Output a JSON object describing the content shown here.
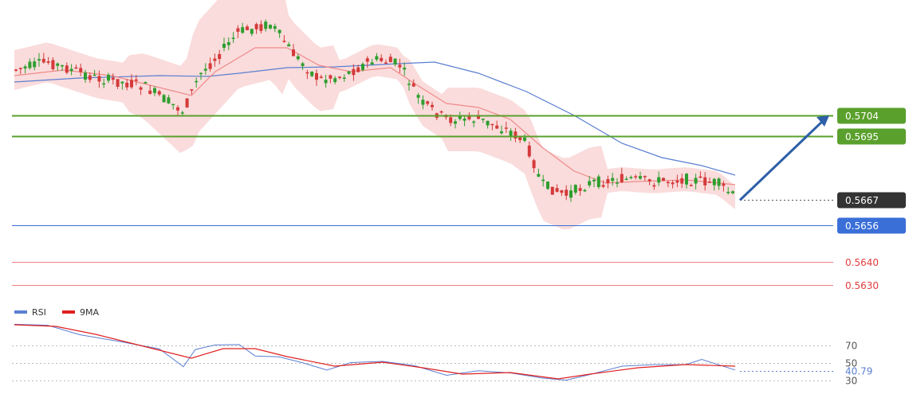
{
  "chart_data": {
    "type": "candlestick",
    "main": {
      "price_ylim": [
        0.5623,
        0.574
      ],
      "levels": [
        {
          "value": 0.5704,
          "label": "0.5704",
          "kind": "resistance",
          "color": "#5aa02c"
        },
        {
          "value": 0.5695,
          "label": "0.5695",
          "kind": "resistance",
          "color": "#5aa02c"
        },
        {
          "value": 0.5667,
          "label": "0.5667",
          "kind": "current",
          "color": "#333333"
        },
        {
          "value": 0.5656,
          "label": "0.5656",
          "kind": "support",
          "color": "#3a6fd8"
        },
        {
          "value": 0.564,
          "label": "0.5640",
          "kind": "support",
          "color": "#f08080"
        },
        {
          "value": 0.563,
          "label": "0.5630",
          "kind": "support",
          "color": "#f08080"
        }
      ],
      "arrow": {
        "from": 0.5667,
        "to": 0.5704,
        "color": "#2e5fa8"
      },
      "candle_colors": {
        "up": "#2e9e2e",
        "down": "#d43a3a"
      },
      "bollinger_fill": "#f9d6d6",
      "ma_slow_color": "#5b7fd1",
      "ma_fast_color": "#f08a8a"
    },
    "rsi": {
      "levels": [
        70,
        50,
        30
      ],
      "level_labels": [
        "70",
        "50",
        "30"
      ],
      "current": "40.79",
      "legend": [
        {
          "name": "RSI",
          "color": "#5b7fd1"
        },
        {
          "name": "9MA",
          "color": "#e02020"
        }
      ]
    }
  }
}
